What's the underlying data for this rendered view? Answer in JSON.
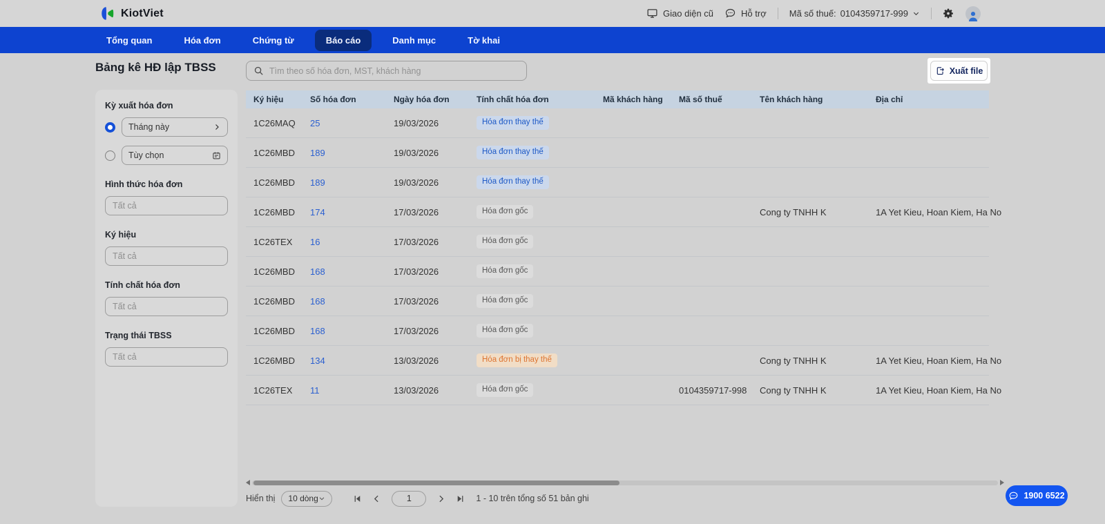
{
  "topbar": {
    "brand": "KiotViet",
    "old_ui_label": "Giao diện cũ",
    "support_label": "Hỗ trợ",
    "tax_label": "Mã số thuế:",
    "tax_value": "0104359717-999"
  },
  "nav": {
    "items": [
      {
        "label": "Tổng quan",
        "active": false
      },
      {
        "label": "Hóa đơn",
        "active": false
      },
      {
        "label": "Chứng từ",
        "active": false
      },
      {
        "label": "Báo cáo",
        "active": true
      },
      {
        "label": "Danh mục",
        "active": false
      },
      {
        "label": "Tờ khai",
        "active": false
      }
    ]
  },
  "sidebar": {
    "title": "Bảng kê HĐ lập TBSS",
    "period": {
      "label": "Kỳ xuất hóa đơn",
      "option_this_month": "Tháng này",
      "option_custom": "Tùy chọn",
      "selected": "Tháng này"
    },
    "filters": [
      {
        "label": "Hình thức hóa đơn",
        "placeholder": "Tất cả"
      },
      {
        "label": "Ký hiệu",
        "placeholder": "Tất cả"
      },
      {
        "label": "Tính chất hóa đơn",
        "placeholder": "Tất cả"
      },
      {
        "label": "Trạng thái TBSS",
        "placeholder": "Tất cả"
      }
    ]
  },
  "toolbar": {
    "search_placeholder": "Tìm theo số hóa đơn, MST, khách hàng",
    "export_label": "Xuất file"
  },
  "table": {
    "columns": [
      "Ký hiệu",
      "Số hóa đơn",
      "Ngày hóa đơn",
      "Tính chất hóa đơn",
      "Mã khách hàng",
      "Mã số thuế",
      "Tên khách hàng",
      "Địa chỉ"
    ],
    "rows": [
      {
        "ky_hieu": "1C26MAQ",
        "so_hoa_don": "25",
        "ngay_hoa_don": "19/03/2026",
        "tinh_chat": "Hóa đơn thay thế",
        "tinh_chat_type": "thay-the",
        "ma_khach_hang": "",
        "ma_so_thue": "",
        "ten_khach_hang": "",
        "dia_chi": ""
      },
      {
        "ky_hieu": "1C26MBD",
        "so_hoa_don": "189",
        "ngay_hoa_don": "19/03/2026",
        "tinh_chat": "Hóa đơn thay thế",
        "tinh_chat_type": "thay-the",
        "ma_khach_hang": "",
        "ma_so_thue": "",
        "ten_khach_hang": "",
        "dia_chi": ""
      },
      {
        "ky_hieu": "1C26MBD",
        "so_hoa_don": "189",
        "ngay_hoa_don": "19/03/2026",
        "tinh_chat": "Hóa đơn thay thế",
        "tinh_chat_type": "thay-the",
        "ma_khach_hang": "",
        "ma_so_thue": "",
        "ten_khach_hang": "",
        "dia_chi": ""
      },
      {
        "ky_hieu": "1C26MBD",
        "so_hoa_don": "174",
        "ngay_hoa_don": "17/03/2026",
        "tinh_chat": "Hóa đơn gốc",
        "tinh_chat_type": "goc",
        "ma_khach_hang": "",
        "ma_so_thue": "",
        "ten_khach_hang": "Cong ty TNHH K",
        "dia_chi": "1A Yet Kieu, Hoan Kiem, Ha No"
      },
      {
        "ky_hieu": "1C26TEX",
        "so_hoa_don": "16",
        "ngay_hoa_don": "17/03/2026",
        "tinh_chat": "Hóa đơn gốc",
        "tinh_chat_type": "goc",
        "ma_khach_hang": "",
        "ma_so_thue": "",
        "ten_khach_hang": "",
        "dia_chi": ""
      },
      {
        "ky_hieu": "1C26MBD",
        "so_hoa_don": "168",
        "ngay_hoa_don": "17/03/2026",
        "tinh_chat": "Hóa đơn gốc",
        "tinh_chat_type": "goc",
        "ma_khach_hang": "",
        "ma_so_thue": "",
        "ten_khach_hang": "",
        "dia_chi": ""
      },
      {
        "ky_hieu": "1C26MBD",
        "so_hoa_don": "168",
        "ngay_hoa_don": "17/03/2026",
        "tinh_chat": "Hóa đơn gốc",
        "tinh_chat_type": "goc",
        "ma_khach_hang": "",
        "ma_so_thue": "",
        "ten_khach_hang": "",
        "dia_chi": ""
      },
      {
        "ky_hieu": "1C26MBD",
        "so_hoa_don": "168",
        "ngay_hoa_don": "17/03/2026",
        "tinh_chat": "Hóa đơn gốc",
        "tinh_chat_type": "goc",
        "ma_khach_hang": "",
        "ma_so_thue": "",
        "ten_khach_hang": "",
        "dia_chi": ""
      },
      {
        "ky_hieu": "1C26MBD",
        "so_hoa_don": "134",
        "ngay_hoa_don": "13/03/2026",
        "tinh_chat": "Hóa đơn bị thay thế",
        "tinh_chat_type": "bi-thay-the",
        "ma_khach_hang": "",
        "ma_so_thue": "",
        "ten_khach_hang": "Cong ty TNHH K",
        "dia_chi": "1A Yet Kieu, Hoan Kiem, Ha No"
      },
      {
        "ky_hieu": "1C26TEX",
        "so_hoa_don": "11",
        "ngay_hoa_don": "13/03/2026",
        "tinh_chat": "Hóa đơn gốc",
        "tinh_chat_type": "goc",
        "ma_khach_hang": "",
        "ma_so_thue": "0104359717-998",
        "ten_khach_hang": "Cong ty TNHH K",
        "dia_chi": "1A Yet Kieu, Hoan Kiem, Ha No"
      }
    ]
  },
  "pagination": {
    "display_label": "Hiển thị",
    "page_size": "10 dòng",
    "current_page": "1",
    "summary": "1 - 10 trên tổng số 51 bản ghi"
  },
  "support_pill": {
    "phone": "1900 6522"
  },
  "colors": {
    "nav_blue": "#0d43d0",
    "nav_active": "#0a2c7c",
    "accent_blue": "#1355f0",
    "link_blue": "#2a5fd0",
    "thead_bg": "#c6d3e1",
    "badge_replace_bg": "#cbd8ec",
    "badge_replace_text": "#1d59c6",
    "badge_original_bg": "#dcdcdc",
    "badge_original_text": "#585858",
    "badge_replaced_bg": "#f1ddc6",
    "badge_replaced_text": "#dd7431",
    "page_bg": "#d2d2d2",
    "topbar_bg": "#d6d6d6",
    "panel_bg": "#d9d9d9"
  }
}
